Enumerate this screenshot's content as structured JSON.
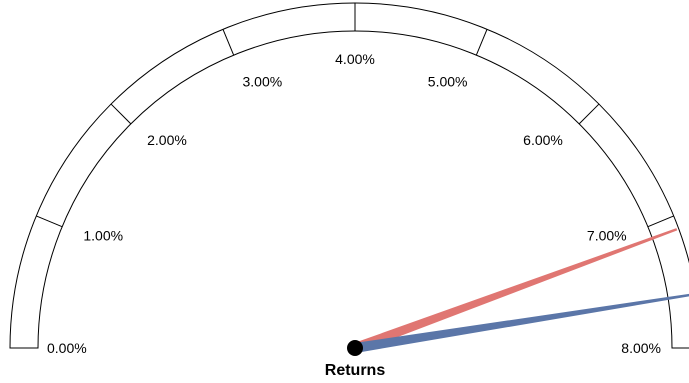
{
  "chart_data": {
    "type": "gauge",
    "title": "Returns",
    "min": 0,
    "max": 8,
    "major_ticks": [
      0,
      1,
      2,
      3,
      4,
      5,
      6,
      7,
      8
    ],
    "tick_labels": [
      "0.00%",
      "1.00%",
      "2.00%",
      "3.00%",
      "4.00%",
      "5.00%",
      "6.00%",
      "7.00%",
      "8.00%"
    ],
    "needles": [
      {
        "value": 7.1,
        "color": "#e07672"
      },
      {
        "value": 7.6,
        "color": "#5b76a8"
      }
    ]
  },
  "colors": {
    "pivot": "#000000",
    "outline": "#000000",
    "band_fill": "#ffffff"
  }
}
